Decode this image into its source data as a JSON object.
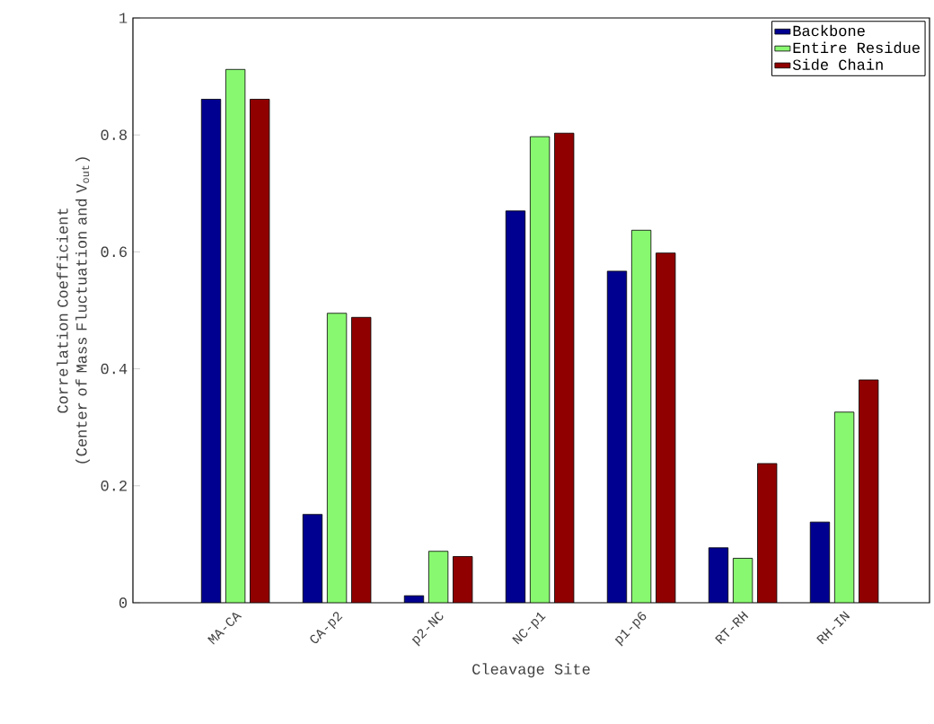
{
  "chart_data": {
    "type": "bar",
    "xlabel": "Cleavage Site",
    "ylabel": "Correlation Coefficient\n(Center of Mass Fluctuation and V$_{out}$)",
    "categories": [
      "MA-CA",
      "CA-p2",
      "p2-NC",
      "NC-p1",
      "p1-p6",
      "RT-RH",
      "RH-IN"
    ],
    "series": [
      {
        "name": "Backbone",
        "color": "#000090",
        "values": [
          0.861,
          0.151,
          0.012,
          0.67,
          0.567,
          0.094,
          0.138
        ]
      },
      {
        "name": "Entire Residue",
        "color": "#88f870",
        "values": [
          0.912,
          0.495,
          0.088,
          0.797,
          0.637,
          0.076,
          0.326
        ]
      },
      {
        "name": "Side Chain",
        "color": "#900000",
        "values": [
          0.861,
          0.488,
          0.079,
          0.803,
          0.598,
          0.238,
          0.381
        ]
      }
    ],
    "ylim": [
      0,
      1
    ],
    "yticks": [
      0,
      0.2,
      0.4,
      0.6,
      0.8,
      1
    ],
    "legend": "top right",
    "grid": false
  }
}
